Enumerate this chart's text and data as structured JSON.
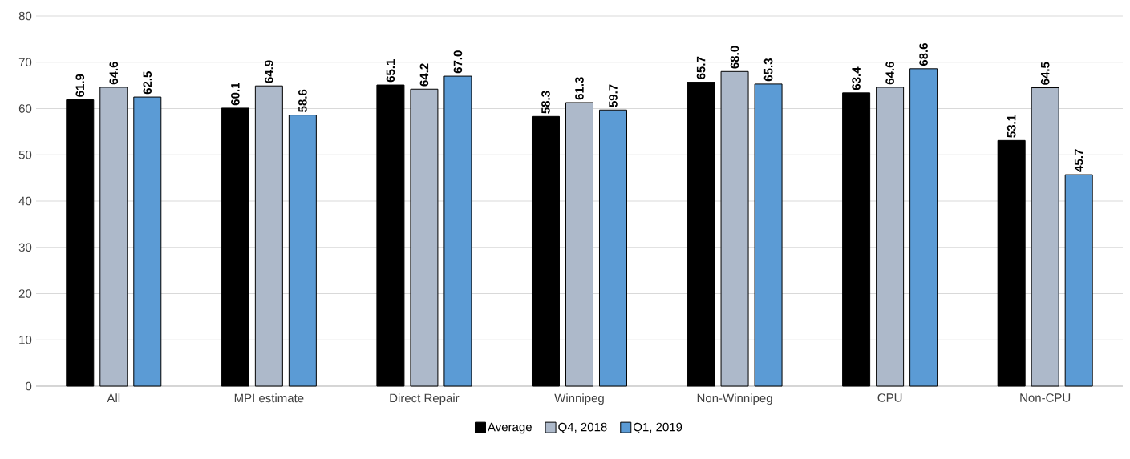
{
  "chart_data": {
    "type": "bar",
    "categories": [
      "All",
      "MPI estimate",
      "Direct Repair",
      "Winnipeg",
      "Non-Winnipeg",
      "CPU",
      "Non-CPU"
    ],
    "series": [
      {
        "name": "Average",
        "color": "#000000",
        "values": [
          61.9,
          60.1,
          65.1,
          58.3,
          65.7,
          63.4,
          53.1
        ],
        "value_labels": [
          "61.9",
          "60.1",
          "65.1",
          "58.3",
          "65.7",
          "63.4",
          "53.1"
        ]
      },
      {
        "name": "Q4, 2018",
        "color": "#adb9ca",
        "values": [
          64.6,
          64.9,
          64.2,
          61.3,
          68.0,
          64.6,
          64.5
        ],
        "value_labels": [
          "64.6",
          "64.9",
          "64.2",
          "61.3",
          "68.0",
          "64.6",
          "64.5"
        ]
      },
      {
        "name": "Q1, 2019",
        "color": "#5b9bd5",
        "values": [
          62.5,
          58.6,
          67.0,
          59.7,
          65.3,
          68.6,
          45.7
        ],
        "value_labels": [
          "62.5",
          "58.6",
          "67.0",
          "59.7",
          "65.3",
          "68.6",
          "45.7"
        ]
      }
    ],
    "ylim": [
      0,
      80
    ],
    "yticks": [
      0,
      10,
      20,
      30,
      40,
      50,
      60,
      70,
      80
    ],
    "grid": "y",
    "legend": "bottom"
  }
}
